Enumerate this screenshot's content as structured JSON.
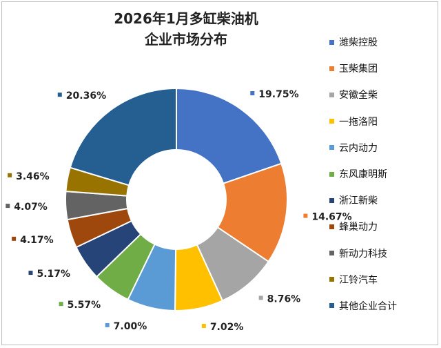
{
  "chart_data": {
    "type": "pie",
    "donut": true,
    "title": "2026年1月多缸柴油机 企业市场分布",
    "title_lines": [
      "2026年1月多缸柴油机",
      "企业市场分布"
    ],
    "legend_position": "right",
    "series": [
      {
        "name": "潍柴控股",
        "value": 19.75,
        "label": "19.75%",
        "color": "#4472C4"
      },
      {
        "name": "玉柴集团",
        "value": 14.67,
        "label": "14.67%",
        "color": "#ED7D31"
      },
      {
        "name": "安徽全柴",
        "value": 8.76,
        "label": "8.76%",
        "color": "#A5A5A5"
      },
      {
        "name": "一拖洛阳",
        "value": 7.02,
        "label": "7.02%",
        "color": "#FFC000"
      },
      {
        "name": "云内动力",
        "value": 7.0,
        "label": "7.00%",
        "color": "#5B9BD5"
      },
      {
        "name": "东风康明斯",
        "value": 5.57,
        "label": "5.57%",
        "color": "#70AD47"
      },
      {
        "name": "浙江新柴",
        "value": 5.17,
        "label": "5.17%",
        "color": "#264478"
      },
      {
        "name": "蜂巢动力",
        "value": 4.17,
        "label": "4.17%",
        "color": "#9E480E"
      },
      {
        "name": "新动力科技",
        "value": 4.07,
        "label": "4.07%",
        "color": "#636363"
      },
      {
        "name": "江铃汽车",
        "value": 3.46,
        "label": "3.46%",
        "color": "#997300"
      },
      {
        "name": "其他企业合计",
        "value": 20.36,
        "label": "20.36%",
        "color": "#255E91"
      }
    ]
  }
}
